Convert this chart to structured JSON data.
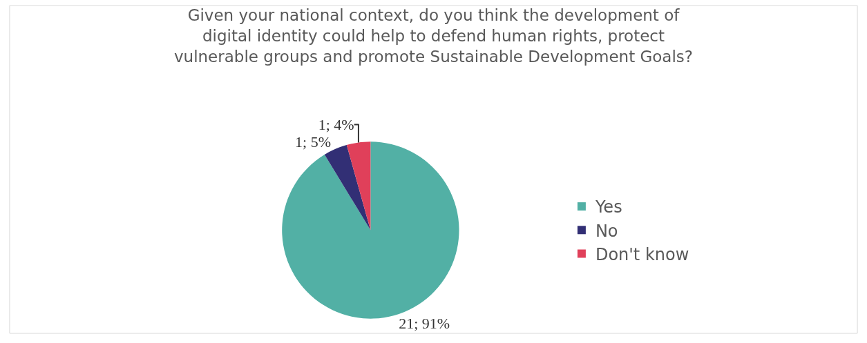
{
  "chart_data": {
    "type": "pie",
    "title": "Given your national context, do you think the development of digital identity could help to defend human rights, protect vulnerable groups and promote Sustainable Development Goals?",
    "categories": [
      "Yes",
      "No",
      "Don't know"
    ],
    "values": [
      21,
      1,
      1
    ],
    "colors": [
      "#52b0a5",
      "#322f75",
      "#e0405a"
    ],
    "value_labels": [
      "21; 91%",
      "1; 5%",
      "1; 4%"
    ],
    "legend": "right"
  }
}
